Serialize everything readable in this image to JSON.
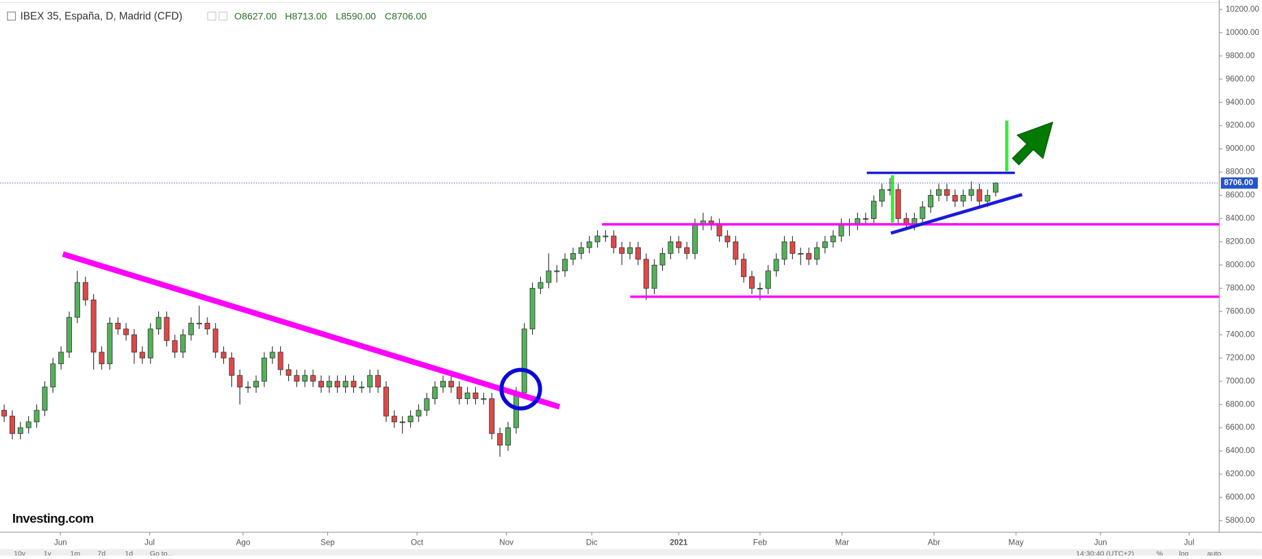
{
  "header": {
    "title": "IBEX 35, España, D, Madrid (CFD)",
    "ohlc": [
      "O8627.00",
      "H8713.00",
      "L8590.00",
      "C8706.00"
    ]
  },
  "logo": "Investing.com",
  "toolbar": {
    "ranges": [
      "10y",
      "1y",
      "1m",
      "7d",
      "1d",
      "Go to..."
    ],
    "time": "14:30:40 (UTC+2)",
    "options": [
      "%",
      "log",
      "auto"
    ]
  },
  "chart_data": {
    "type": "candlestick",
    "up_color": "#53b15a",
    "down_color": "#e04848",
    "xlim": [
      0,
      149.5
    ],
    "ylim": [
      5700,
      10240
    ],
    "grid": false,
    "last_price": {
      "value": 8706,
      "label": "8706.00"
    },
    "xticks": [
      {
        "value": 6.93,
        "label": "Jun"
      },
      {
        "value": 17.9,
        "label": "Jul"
      },
      {
        "value": 29.4,
        "label": "Ago"
      },
      {
        "value": 39.8,
        "label": "Sep"
      },
      {
        "value": 50.8,
        "label": "Oct"
      },
      {
        "value": 61.8,
        "label": "Nov"
      },
      {
        "value": 72.3,
        "label": "Dic"
      },
      {
        "value": 83.0,
        "label": "2021"
      },
      {
        "value": 93.0,
        "label": "Feb"
      },
      {
        "value": 103.1,
        "label": "Mar"
      },
      {
        "value": 114.4,
        "label": "Abr"
      },
      {
        "value": 124.5,
        "label": "May"
      },
      {
        "value": 134.9,
        "label": "Jun"
      },
      {
        "value": 145.8,
        "label": "Jul"
      }
    ],
    "yticks": [
      {
        "value": 5800,
        "label": "5800.00"
      },
      {
        "value": 6000,
        "label": "6000.00"
      },
      {
        "value": 6200,
        "label": "6200.00"
      },
      {
        "value": 6400,
        "label": "6400.00"
      },
      {
        "value": 6600,
        "label": "6600.00"
      },
      {
        "value": 6800,
        "label": "6800.00"
      },
      {
        "value": 7000,
        "label": "7000.00"
      },
      {
        "value": 7200,
        "label": "7200.00"
      },
      {
        "value": 7400,
        "label": "7400.00"
      },
      {
        "value": 7600,
        "label": "7600.00"
      },
      {
        "value": 7800,
        "label": "7800.00"
      },
      {
        "value": 8000,
        "label": "8000.00"
      },
      {
        "value": 8200,
        "label": "8200.00"
      },
      {
        "value": 8400,
        "label": "8400.00"
      },
      {
        "value": 8600,
        "label": "8600.00"
      },
      {
        "value": 8800,
        "label": "8800.00"
      },
      {
        "value": 9000,
        "label": "9000.00"
      },
      {
        "value": 9200,
        "label": "9200.00"
      },
      {
        "value": 9400,
        "label": "9400.00"
      },
      {
        "value": 9600,
        "label": "9600.00"
      },
      {
        "value": 9800,
        "label": "9800.00"
      },
      {
        "value": 10000,
        "label": "10000.00"
      },
      {
        "value": 10200,
        "label": "10200.00"
      }
    ],
    "candles": [
      [
        6750,
        6800,
        6650,
        6700
      ],
      [
        6700,
        6750,
        6500,
        6550
      ],
      [
        6550,
        6650,
        6500,
        6600
      ],
      [
        6600,
        6700,
        6550,
        6650
      ],
      [
        6650,
        6800,
        6600,
        6750
      ],
      [
        6750,
        7000,
        6700,
        6950
      ],
      [
        6950,
        7200,
        6900,
        7150
      ],
      [
        7150,
        7300,
        7100,
        7250
      ],
      [
        7250,
        7600,
        7200,
        7550
      ],
      [
        7550,
        7950,
        7500,
        7850
      ],
      [
        7850,
        7900,
        7650,
        7700
      ],
      [
        7700,
        7750,
        7100,
        7250
      ],
      [
        7250,
        7300,
        7100,
        7150
      ],
      [
        7150,
        7550,
        7100,
        7500
      ],
      [
        7500,
        7550,
        7400,
        7450
      ],
      [
        7450,
        7500,
        7350,
        7400
      ],
      [
        7400,
        7450,
        7150,
        7250
      ],
      [
        7250,
        7300,
        7150,
        7200
      ],
      [
        7200,
        7500,
        7150,
        7450
      ],
      [
        7450,
        7600,
        7400,
        7550
      ],
      [
        7550,
        7600,
        7300,
        7350
      ],
      [
        7350,
        7400,
        7200,
        7250
      ],
      [
        7250,
        7450,
        7200,
        7400
      ],
      [
        7400,
        7550,
        7350,
        7500
      ],
      [
        7500,
        7650,
        7450,
        7500
      ],
      [
        7500,
        7550,
        7400,
        7450
      ],
      [
        7450,
        7500,
        7200,
        7250
      ],
      [
        7250,
        7300,
        7150,
        7200
      ],
      [
        7200,
        7250,
        6950,
        7050
      ],
      [
        7050,
        7100,
        6800,
        6950
      ],
      [
        6950,
        7000,
        6900,
        6950
      ],
      [
        6950,
        7050,
        6900,
        7000
      ],
      [
        7000,
        7250,
        6950,
        7200
      ],
      [
        7200,
        7300,
        7150,
        7250
      ],
      [
        7250,
        7300,
        7050,
        7100
      ],
      [
        7100,
        7150,
        7000,
        7050
      ],
      [
        7050,
        7100,
        6950,
        7000
      ],
      [
        7000,
        7100,
        6950,
        7050
      ],
      [
        7050,
        7100,
        6950,
        7000
      ],
      [
        7000,
        7050,
        6900,
        6950
      ],
      [
        6950,
        7050,
        6900,
        7000
      ],
      [
        7000,
        7050,
        6900,
        6950
      ],
      [
        6950,
        7050,
        6900,
        7000
      ],
      [
        7000,
        7050,
        6900,
        6950
      ],
      [
        6950,
        7000,
        6900,
        6950
      ],
      [
        6950,
        7100,
        6900,
        7050
      ],
      [
        7050,
        7100,
        6900,
        6950
      ],
      [
        6950,
        7000,
        6650,
        6700
      ],
      [
        6700,
        6750,
        6600,
        6650
      ],
      [
        6650,
        6700,
        6550,
        6650
      ],
      [
        6650,
        6750,
        6600,
        6700
      ],
      [
        6700,
        6800,
        6650,
        6750
      ],
      [
        6750,
        6900,
        6700,
        6850
      ],
      [
        6850,
        7000,
        6800,
        6950
      ],
      [
        6950,
        7050,
        6900,
        7000
      ],
      [
        7000,
        7050,
        6900,
        6950
      ],
      [
        6950,
        7000,
        6800,
        6850
      ],
      [
        6850,
        6950,
        6800,
        6900
      ],
      [
        6900,
        6950,
        6800,
        6850
      ],
      [
        6850,
        6900,
        6800,
        6850
      ],
      [
        6850,
        6900,
        6500,
        6550
      ],
      [
        6550,
        6600,
        6350,
        6450
      ],
      [
        6450,
        6650,
        6400,
        6600
      ],
      [
        6600,
        6950,
        6550,
        6900
      ],
      [
        6900,
        7500,
        6850,
        7450
      ],
      [
        7450,
        7850,
        7400,
        7800
      ],
      [
        7800,
        7900,
        7750,
        7850
      ],
      [
        7850,
        8100,
        7800,
        7950
      ],
      [
        7950,
        8000,
        7850,
        7950
      ],
      [
        7950,
        8100,
        7900,
        8050
      ],
      [
        8050,
        8150,
        8000,
        8100
      ],
      [
        8100,
        8200,
        8050,
        8150
      ],
      [
        8150,
        8250,
        8100,
        8200
      ],
      [
        8200,
        8300,
        8150,
        8250
      ],
      [
        8250,
        8300,
        8200,
        8250
      ],
      [
        8250,
        8300,
        8100,
        8150
      ],
      [
        8150,
        8200,
        8000,
        8100
      ],
      [
        8100,
        8200,
        8050,
        8150
      ],
      [
        8150,
        8200,
        8000,
        8050
      ],
      [
        8050,
        8100,
        7700,
        7800
      ],
      [
        7800,
        8050,
        7750,
        8000
      ],
      [
        8000,
        8150,
        7950,
        8100
      ],
      [
        8100,
        8250,
        8050,
        8200
      ],
      [
        8200,
        8250,
        8100,
        8150
      ],
      [
        8150,
        8200,
        8050,
        8100
      ],
      [
        8100,
        8400,
        8050,
        8350
      ],
      [
        8350,
        8450,
        8300,
        8380
      ],
      [
        8380,
        8420,
        8300,
        8350
      ],
      [
        8350,
        8400,
        8200,
        8250
      ],
      [
        8250,
        8300,
        8150,
        8200
      ],
      [
        8200,
        8250,
        8000,
        8050
      ],
      [
        8050,
        8100,
        7850,
        7900
      ],
      [
        7900,
        7950,
        7750,
        7800
      ],
      [
        7800,
        7850,
        7700,
        7800
      ],
      [
        7800,
        8000,
        7750,
        7950
      ],
      [
        7950,
        8100,
        7900,
        8050
      ],
      [
        8050,
        8250,
        8000,
        8200
      ],
      [
        8200,
        8250,
        8050,
        8100
      ],
      [
        8100,
        8150,
        8000,
        8100
      ],
      [
        8100,
        8150,
        8000,
        8050
      ],
      [
        8050,
        8200,
        8000,
        8150
      ],
      [
        8150,
        8250,
        8100,
        8200
      ],
      [
        8200,
        8300,
        8150,
        8250
      ],
      [
        8250,
        8400,
        8200,
        8350
      ],
      [
        8350,
        8400,
        8250,
        8350
      ],
      [
        8350,
        8450,
        8300,
        8400
      ],
      [
        8400,
        8450,
        8350,
        8400
      ],
      [
        8400,
        8600,
        8350,
        8550
      ],
      [
        8550,
        8700,
        8500,
        8650
      ],
      [
        8650,
        8750,
        8600,
        8650
      ],
      [
        8650,
        8700,
        8350,
        8400
      ],
      [
        8400,
        8450,
        8300,
        8350
      ],
      [
        8350,
        8450,
        8300,
        8400
      ],
      [
        8400,
        8550,
        8350,
        8500
      ],
      [
        8500,
        8650,
        8450,
        8600
      ],
      [
        8600,
        8700,
        8550,
        8650
      ],
      [
        8650,
        8700,
        8550,
        8600
      ],
      [
        8600,
        8650,
        8500,
        8550
      ],
      [
        8550,
        8650,
        8500,
        8600
      ],
      [
        8600,
        8720,
        8550,
        8650
      ],
      [
        8650,
        8700,
        8500,
        8550
      ],
      [
        8550,
        8650,
        8500,
        8600
      ],
      [
        8627,
        8713,
        8590,
        8706
      ]
    ]
  }
}
